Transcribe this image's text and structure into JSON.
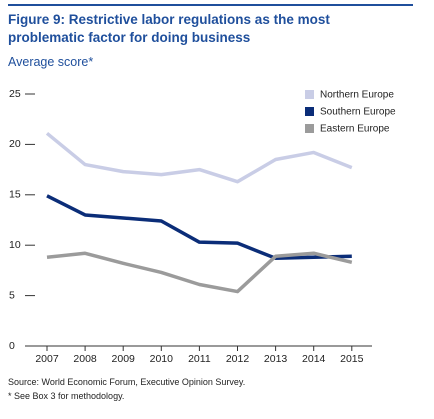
{
  "chart_data": {
    "type": "line",
    "title": [
      "Figure 9: Restrictive labor regulations as the most",
      "problematic factor for doing business"
    ],
    "subtitle": "Average score*",
    "categories": [
      "2007",
      "2008",
      "2009",
      "2010",
      "2011",
      "2012",
      "2013",
      "2014",
      "2015"
    ],
    "series": [
      {
        "name": "Northern Europe",
        "color": "#c9cde6",
        "values": [
          21.1,
          18.0,
          17.3,
          17.0,
          17.5,
          16.3,
          18.5,
          19.2,
          17.7
        ]
      },
      {
        "name": "Southern Europe",
        "color": "#0b2d78",
        "values": [
          14.9,
          13.0,
          12.7,
          12.4,
          10.3,
          10.2,
          8.7,
          8.8,
          8.9
        ]
      },
      {
        "name": "Eastern Europe",
        "color": "#9b9b9b",
        "values": [
          8.8,
          9.2,
          8.2,
          7.3,
          6.1,
          5.4,
          8.9,
          9.2,
          8.3
        ]
      }
    ],
    "ylim": [
      0,
      25
    ],
    "yticks": [
      0,
      5,
      10,
      15,
      20,
      25
    ],
    "grid": false,
    "legend": "top-right",
    "notes": [
      "Source: World Economic Forum, Executive Opinion Survey.",
      "* See Box 3 for methodology."
    ]
  }
}
